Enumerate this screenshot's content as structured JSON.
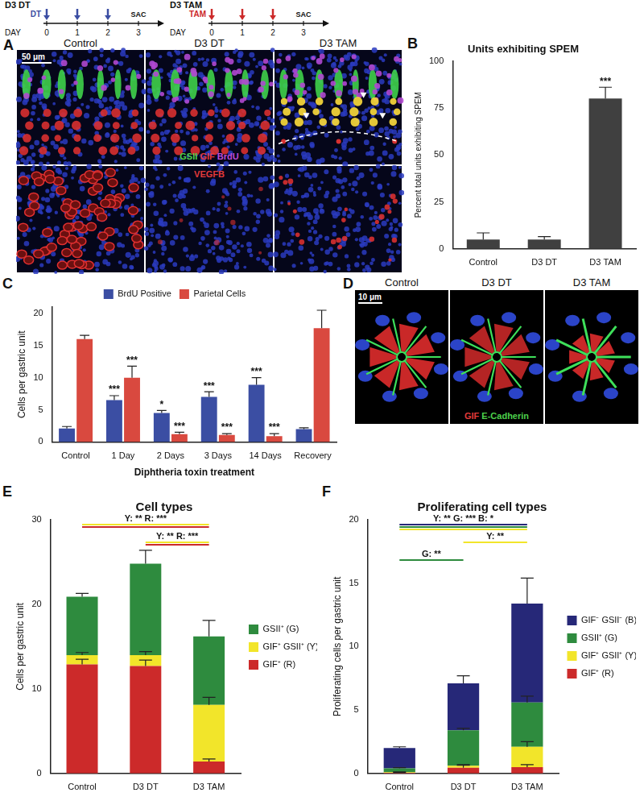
{
  "chart_data": [
    {
      "type": "bar",
      "panel_label": "B",
      "title": "Units exhibiting SPEM",
      "y_label": "Percent total units exhibiting SPEM",
      "categories": [
        "Control",
        "D3 DT",
        "D3 TAM"
      ],
      "values": [
        5,
        5,
        80
      ],
      "errors": [
        3.5,
        1.5,
        6
      ],
      "significance": [
        null,
        null,
        "***"
      ],
      "color": "#404040",
      "ylim": [
        0,
        100
      ],
      "yticks": [
        0,
        25,
        50,
        75,
        100
      ],
      "grid": false
    },
    {
      "type": "bar",
      "panel_label": "C",
      "y_label": "Cells per gastric unit",
      "x_label": "Diphtheria toxin treatment",
      "categories": [
        "Control",
        "1 Day",
        "2 Days",
        "3 Days",
        "14 Days",
        "Recovery"
      ],
      "series": [
        {
          "name": "BrdU Positive",
          "color": "#3b4ea3",
          "values": [
            2.1,
            6.5,
            4.5,
            7.0,
            8.9,
            2.0
          ],
          "errors": [
            0.3,
            0.7,
            0.4,
            0.8,
            1.1,
            0.2
          ],
          "significance": [
            null,
            "***",
            "*",
            "***",
            "***",
            null
          ]
        },
        {
          "name": "Parietal Cells",
          "color": "#d9493f",
          "values": [
            16.0,
            10.0,
            1.2,
            1.1,
            0.9,
            17.7
          ],
          "errors": [
            0.6,
            1.8,
            0.3,
            0.2,
            0.4,
            2.8
          ],
          "significance": [
            null,
            "***",
            "***",
            "***",
            "***",
            null
          ]
        }
      ],
      "ylim": [
        0,
        21
      ],
      "yticks": [
        0,
        5,
        10,
        15,
        20
      ],
      "grid": false,
      "legend": "top"
    },
    {
      "type": "bar",
      "panel_label": "E",
      "title": "Cell types",
      "y_label": "Cells per gastric unit",
      "categories": [
        "Control",
        "D3 DT",
        "D3 TAM"
      ],
      "stacked": true,
      "series": [
        {
          "name": "GIF⁺ (R)",
          "color": "#cc2a2a",
          "values": [
            12.9,
            12.7,
            1.4
          ],
          "errors": [
            0.6,
            0.7,
            0.3
          ]
        },
        {
          "name": "GIF⁺ GSII⁺ (Y)",
          "color": "#f2e52a",
          "values": [
            1.1,
            1.3,
            6.7
          ],
          "errors": [
            0.3,
            0.4,
            0.9
          ]
        },
        {
          "name": "GSII⁺ (G)",
          "color": "#2e8b3e",
          "values": [
            6.9,
            10.8,
            8.1
          ],
          "errors": [
            0.4,
            1.6,
            1.9
          ]
        }
      ],
      "comparisons": [
        {
          "from": "Control",
          "to": "D3 TAM",
          "label": "Y: ** R: ***",
          "colors": [
            "#f2e52a",
            "#cc2a2a"
          ]
        },
        {
          "from": "D3 DT",
          "to": "D3 TAM",
          "label": "Y: ** R: ***",
          "colors": [
            "#f2e52a",
            "#cc2a2a"
          ]
        }
      ],
      "ylim": [
        0,
        30
      ],
      "yticks": [
        0,
        10,
        20,
        30
      ],
      "grid": false,
      "legend": "right"
    },
    {
      "type": "bar",
      "panel_label": "F",
      "title": "Proliferating cell types",
      "y_label": "Proliferating cells per gastric unit",
      "categories": [
        "Control",
        "D3 DT",
        "D3 TAM"
      ],
      "stacked": true,
      "series": [
        {
          "name": "GIF⁺ (R)",
          "color": "#cc2a2a",
          "values": [
            0.05,
            0.45,
            0.5
          ],
          "errors": [
            0.02,
            0.2,
            0.2
          ]
        },
        {
          "name": "GIF⁺ GSII⁺ (Y)",
          "color": "#f2e52a",
          "values": [
            0.05,
            0.15,
            1.6
          ],
          "errors": [
            0.03,
            0.1,
            0.4
          ]
        },
        {
          "name": "GSII⁺ (G)",
          "color": "#2e8b3e",
          "values": [
            0.3,
            2.8,
            3.5
          ],
          "errors": [
            0.05,
            0.15,
            0.5
          ]
        },
        {
          "name": "GIF⁻ GSII⁻ (B)",
          "color": "#262878",
          "values": [
            1.6,
            3.7,
            7.8
          ],
          "errors": [
            0.1,
            0.6,
            2.0
          ]
        }
      ],
      "comparisons": [
        {
          "from": "Control",
          "to": "D3 TAM",
          "label": "Y: ** G: *** B: *",
          "colors": [
            "#262878",
            "#2e8b3e",
            "#f2e52a"
          ]
        },
        {
          "from": "D3 DT",
          "to": "D3 TAM",
          "label": "Y: **",
          "colors": [
            "#f2e52a"
          ]
        },
        {
          "from": "Control",
          "to": "D3 DT",
          "label": "G: **",
          "colors": [
            "#2e8b3e"
          ]
        }
      ],
      "ylim": [
        0,
        20
      ],
      "yticks": [
        0,
        5,
        10,
        15,
        20
      ],
      "grid": false,
      "legend": "right"
    }
  ],
  "figure": {
    "timelines": [
      {
        "title": "D3 DT",
        "marker": "DT",
        "color": "#3b4ea3",
        "axis_label": "DAY",
        "days": [
          0,
          1,
          2,
          3
        ],
        "treated_days": [
          0,
          1,
          2
        ],
        "end": "SAC"
      },
      {
        "title": "D3 TAM",
        "marker": "TAM",
        "color": "#cc2a2a",
        "axis_label": "DAY",
        "days": [
          0,
          1,
          2,
          3
        ],
        "treated_days": [
          0,
          1,
          2
        ],
        "end": "SAC"
      }
    ],
    "panels": [
      {
        "panel_label": "A",
        "columns": [
          "Control",
          "D3 DT",
          "D3 TAM"
        ],
        "scale_bar": "50 μm",
        "rows": [
          {
            "stain": [
              {
                "text": "GSII",
                "color": "#4cd14c"
              },
              {
                "text": "GIF",
                "color": "#e23a3a"
              },
              {
                "text": "BrdU",
                "color": "#c04ad8"
              }
            ]
          },
          {
            "stain": [
              {
                "text": "VEGFB",
                "color": "#e23a3a"
              }
            ]
          }
        ]
      },
      {
        "panel_label": "D",
        "columns": [
          "Control",
          "D3 DT",
          "D3 TAM"
        ],
        "scale_bar": "10 μm",
        "stain": [
          {
            "text": "GIF",
            "color": "#e23a3a"
          },
          {
            "text": "E-Cadherin",
            "color": "#4cd14c"
          }
        ]
      }
    ]
  }
}
